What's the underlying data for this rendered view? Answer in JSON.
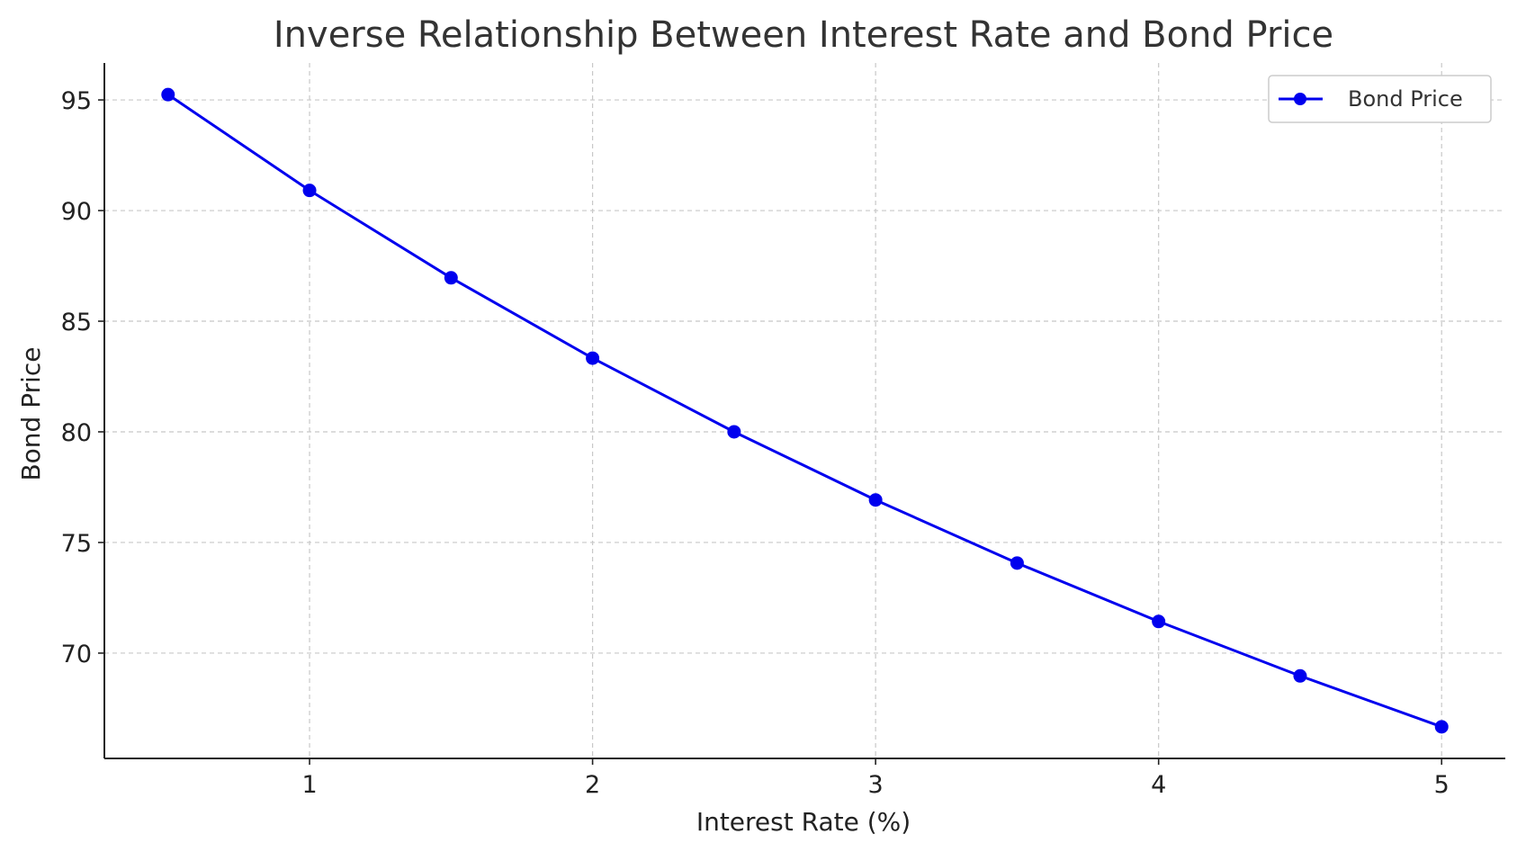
{
  "chart_data": {
    "type": "line",
    "title": "Inverse Relationship Between Interest Rate and Bond Price",
    "xlabel": "Interest Rate (%)",
    "ylabel": "Bond Price",
    "x": [
      0.5,
      1.0,
      1.5,
      2.0,
      2.5,
      3.0,
      3.5,
      4.0,
      4.5,
      5.0
    ],
    "series": [
      {
        "name": "Bond Price",
        "color": "#0000ee",
        "marker": "circle",
        "values": [
          95.24,
          90.91,
          86.96,
          83.33,
          80.0,
          76.92,
          74.07,
          71.43,
          68.97,
          66.67
        ]
      }
    ],
    "xticks": [
      1,
      2,
      3,
      4,
      5
    ],
    "yticks": [
      70,
      75,
      80,
      85,
      90,
      95
    ],
    "xlim": [
      0.275,
      5.225
    ],
    "ylim": [
      65.24,
      96.67
    ],
    "grid": true,
    "legend_position": "top-right",
    "colors": {
      "line": "#0000ee",
      "grid": "#c8c8c8",
      "axis": "#222222",
      "title": "#333333"
    }
  }
}
